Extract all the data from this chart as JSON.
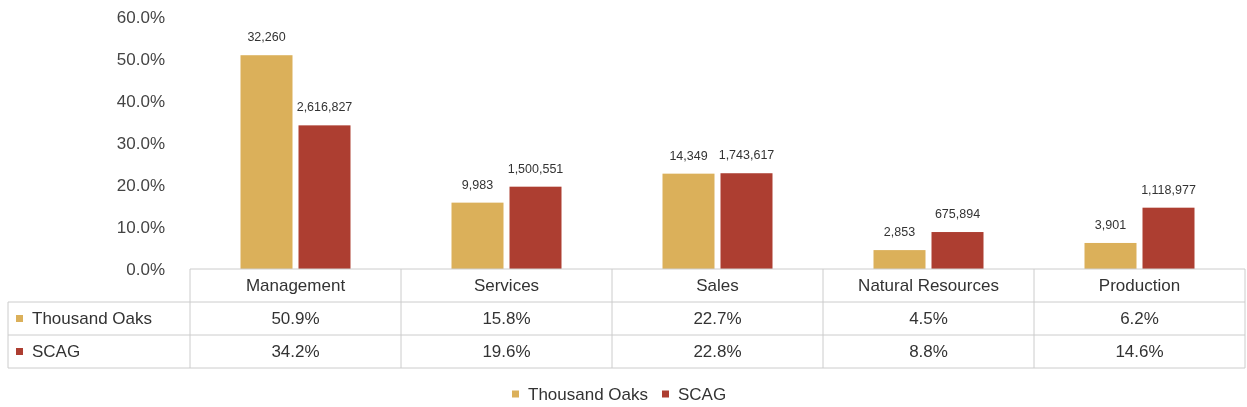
{
  "chart_data": {
    "type": "bar",
    "categories": [
      "Management",
      "Services",
      "Sales",
      "Natural Resources",
      "Production"
    ],
    "series": [
      {
        "name": "Thousand Oaks",
        "color": "#dbb05a",
        "values": [
          50.9,
          15.8,
          22.7,
          4.5,
          6.2
        ],
        "value_labels": [
          "50.9%",
          "15.8%",
          "22.7%",
          "4.5%",
          "6.2%"
        ]
      },
      {
        "name": "SCAG",
        "color": "#ad3e31",
        "values": [
          34.2,
          19.6,
          22.8,
          8.8,
          14.6
        ],
        "value_labels": [
          "34.2%",
          "19.6%",
          "22.8%",
          "8.8%",
          "14.6%"
        ]
      }
    ],
    "annotations": [
      {
        "text": "32,260",
        "x": "Management",
        "y": 50.9
      },
      {
        "text": "9,983",
        "x": "Services",
        "y": 15.8
      },
      {
        "text": "14,349",
        "x": "Sales",
        "y": 22.7
      },
      {
        "text": "2,853",
        "x": "Natural Resources",
        "y": 4.5
      },
      {
        "text": "3,901",
        "x": "Production",
        "y": 6.2
      },
      {
        "text": "2,616,827",
        "x": "Management",
        "y": 34.2
      },
      {
        "text": "1,500,551",
        "x": "Services",
        "y": 19.6
      },
      {
        "text": "1,743,617",
        "x": "Sales",
        "y": 22.8
      },
      {
        "text": "675,894",
        "x": "Natural Resources",
        "y": 8.8
      },
      {
        "text": "1,118,977",
        "x": "Production",
        "y": 14.6
      }
    ],
    "ylim": [
      0,
      60
    ],
    "yticks": [
      {
        "value": 0,
        "label": "0.0%"
      },
      {
        "value": 10,
        "label": "10.0%"
      },
      {
        "value": 20,
        "label": "20.0%"
      },
      {
        "value": 30,
        "label": "30.0%"
      },
      {
        "value": 40,
        "label": "40.0%"
      },
      {
        "value": 50,
        "label": "50.0%"
      },
      {
        "value": 60,
        "label": "60.0%"
      }
    ],
    "grid": false,
    "legend": "bottom"
  }
}
